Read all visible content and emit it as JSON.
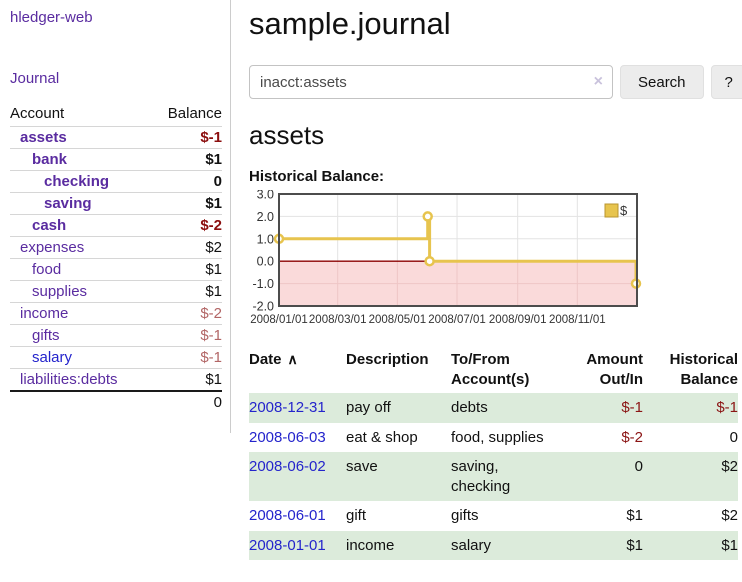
{
  "app": {
    "title": "hledger-web"
  },
  "sidebar": {
    "journal_link": "Journal",
    "accounts": {
      "headers": [
        "Account",
        "Balance"
      ],
      "rows": [
        {
          "name": "assets",
          "depth": 1,
          "emph": true,
          "balance": "$-1"
        },
        {
          "name": "bank",
          "depth": 2,
          "emph": true,
          "balance": "$1"
        },
        {
          "name": "checking",
          "depth": 3,
          "emph": true,
          "balance": "0"
        },
        {
          "name": "saving",
          "depth": 3,
          "emph": true,
          "balance": "$1"
        },
        {
          "name": "cash",
          "depth": 2,
          "emph": true,
          "balance": "$-2"
        },
        {
          "name": "expenses",
          "depth": 1,
          "emph": false,
          "balance": "$2"
        },
        {
          "name": "food",
          "depth": 2,
          "emph": false,
          "balance": "$1"
        },
        {
          "name": "supplies",
          "depth": 2,
          "emph": false,
          "balance": "$1"
        },
        {
          "name": "income",
          "depth": 1,
          "emph": false,
          "balance": "$-2"
        },
        {
          "name": "gifts",
          "depth": 2,
          "emph": false,
          "balance": "$-1"
        },
        {
          "name": "salary",
          "depth": 2,
          "emph": false,
          "balance": "$-1",
          "link_state": "unvisited"
        },
        {
          "name": "liabilities:debts",
          "depth": 1,
          "emph": false,
          "balance": "$1"
        }
      ],
      "total": "0"
    }
  },
  "main": {
    "title": "sample.journal",
    "search": {
      "value": "inacct:assets",
      "clear_icon": "×",
      "button_label": "Search",
      "help_label": "?"
    },
    "account_heading": "assets"
  },
  "chart_data": {
    "type": "line",
    "title": "Historical Balance:",
    "step": true,
    "series": [
      {
        "name": "$",
        "color": "#e7c44e",
        "points": [
          [
            "2008-01-01",
            1
          ],
          [
            "2008-06-01",
            2
          ],
          [
            "2008-06-03",
            0
          ],
          [
            "2008-12-31",
            -1
          ]
        ]
      }
    ],
    "x_range": [
      "2008-01-01",
      "2009-01-01"
    ],
    "x_ticks": [
      "2008/01/01",
      "2008/03/01",
      "2008/05/01",
      "2008/07/01",
      "2008/09/01",
      "2008/11/01"
    ],
    "y_ticks": [
      3.0,
      2.0,
      1.0,
      0.0,
      -1.0,
      -2.0
    ],
    "ylim": [
      -2,
      3
    ],
    "grid": true,
    "zero_line_color": "#8b0000",
    "negative_region_color": "#fadada",
    "legend": {
      "label": "$",
      "position": "top-right",
      "swatch_color": "#e7c44e"
    }
  },
  "register": {
    "columns": [
      {
        "label": "Date",
        "sort_icon": "∧",
        "align": "left"
      },
      {
        "label": "Description",
        "align": "left"
      },
      {
        "label": "To/From Account(s)",
        "align": "left"
      },
      {
        "label": "Amount Out/In",
        "align": "right"
      },
      {
        "label": "Historical Balance",
        "align": "right"
      }
    ],
    "rows": [
      {
        "date": "2008-12-31",
        "description": "pay off",
        "accounts": "debts",
        "amount": "$-1",
        "balance": "$-1"
      },
      {
        "date": "2008-06-03",
        "description": "eat & shop",
        "accounts": "food, supplies",
        "amount": "$-2",
        "balance": "0"
      },
      {
        "date": "2008-06-02",
        "description": "save",
        "accounts": "saving, checking",
        "amount": "0",
        "balance": "$2"
      },
      {
        "date": "2008-06-01",
        "description": "gift",
        "accounts": "gifts",
        "amount": "$1",
        "balance": "$2"
      },
      {
        "date": "2008-01-01",
        "description": "income",
        "accounts": "salary",
        "amount": "$1",
        "balance": "$1"
      }
    ]
  }
}
